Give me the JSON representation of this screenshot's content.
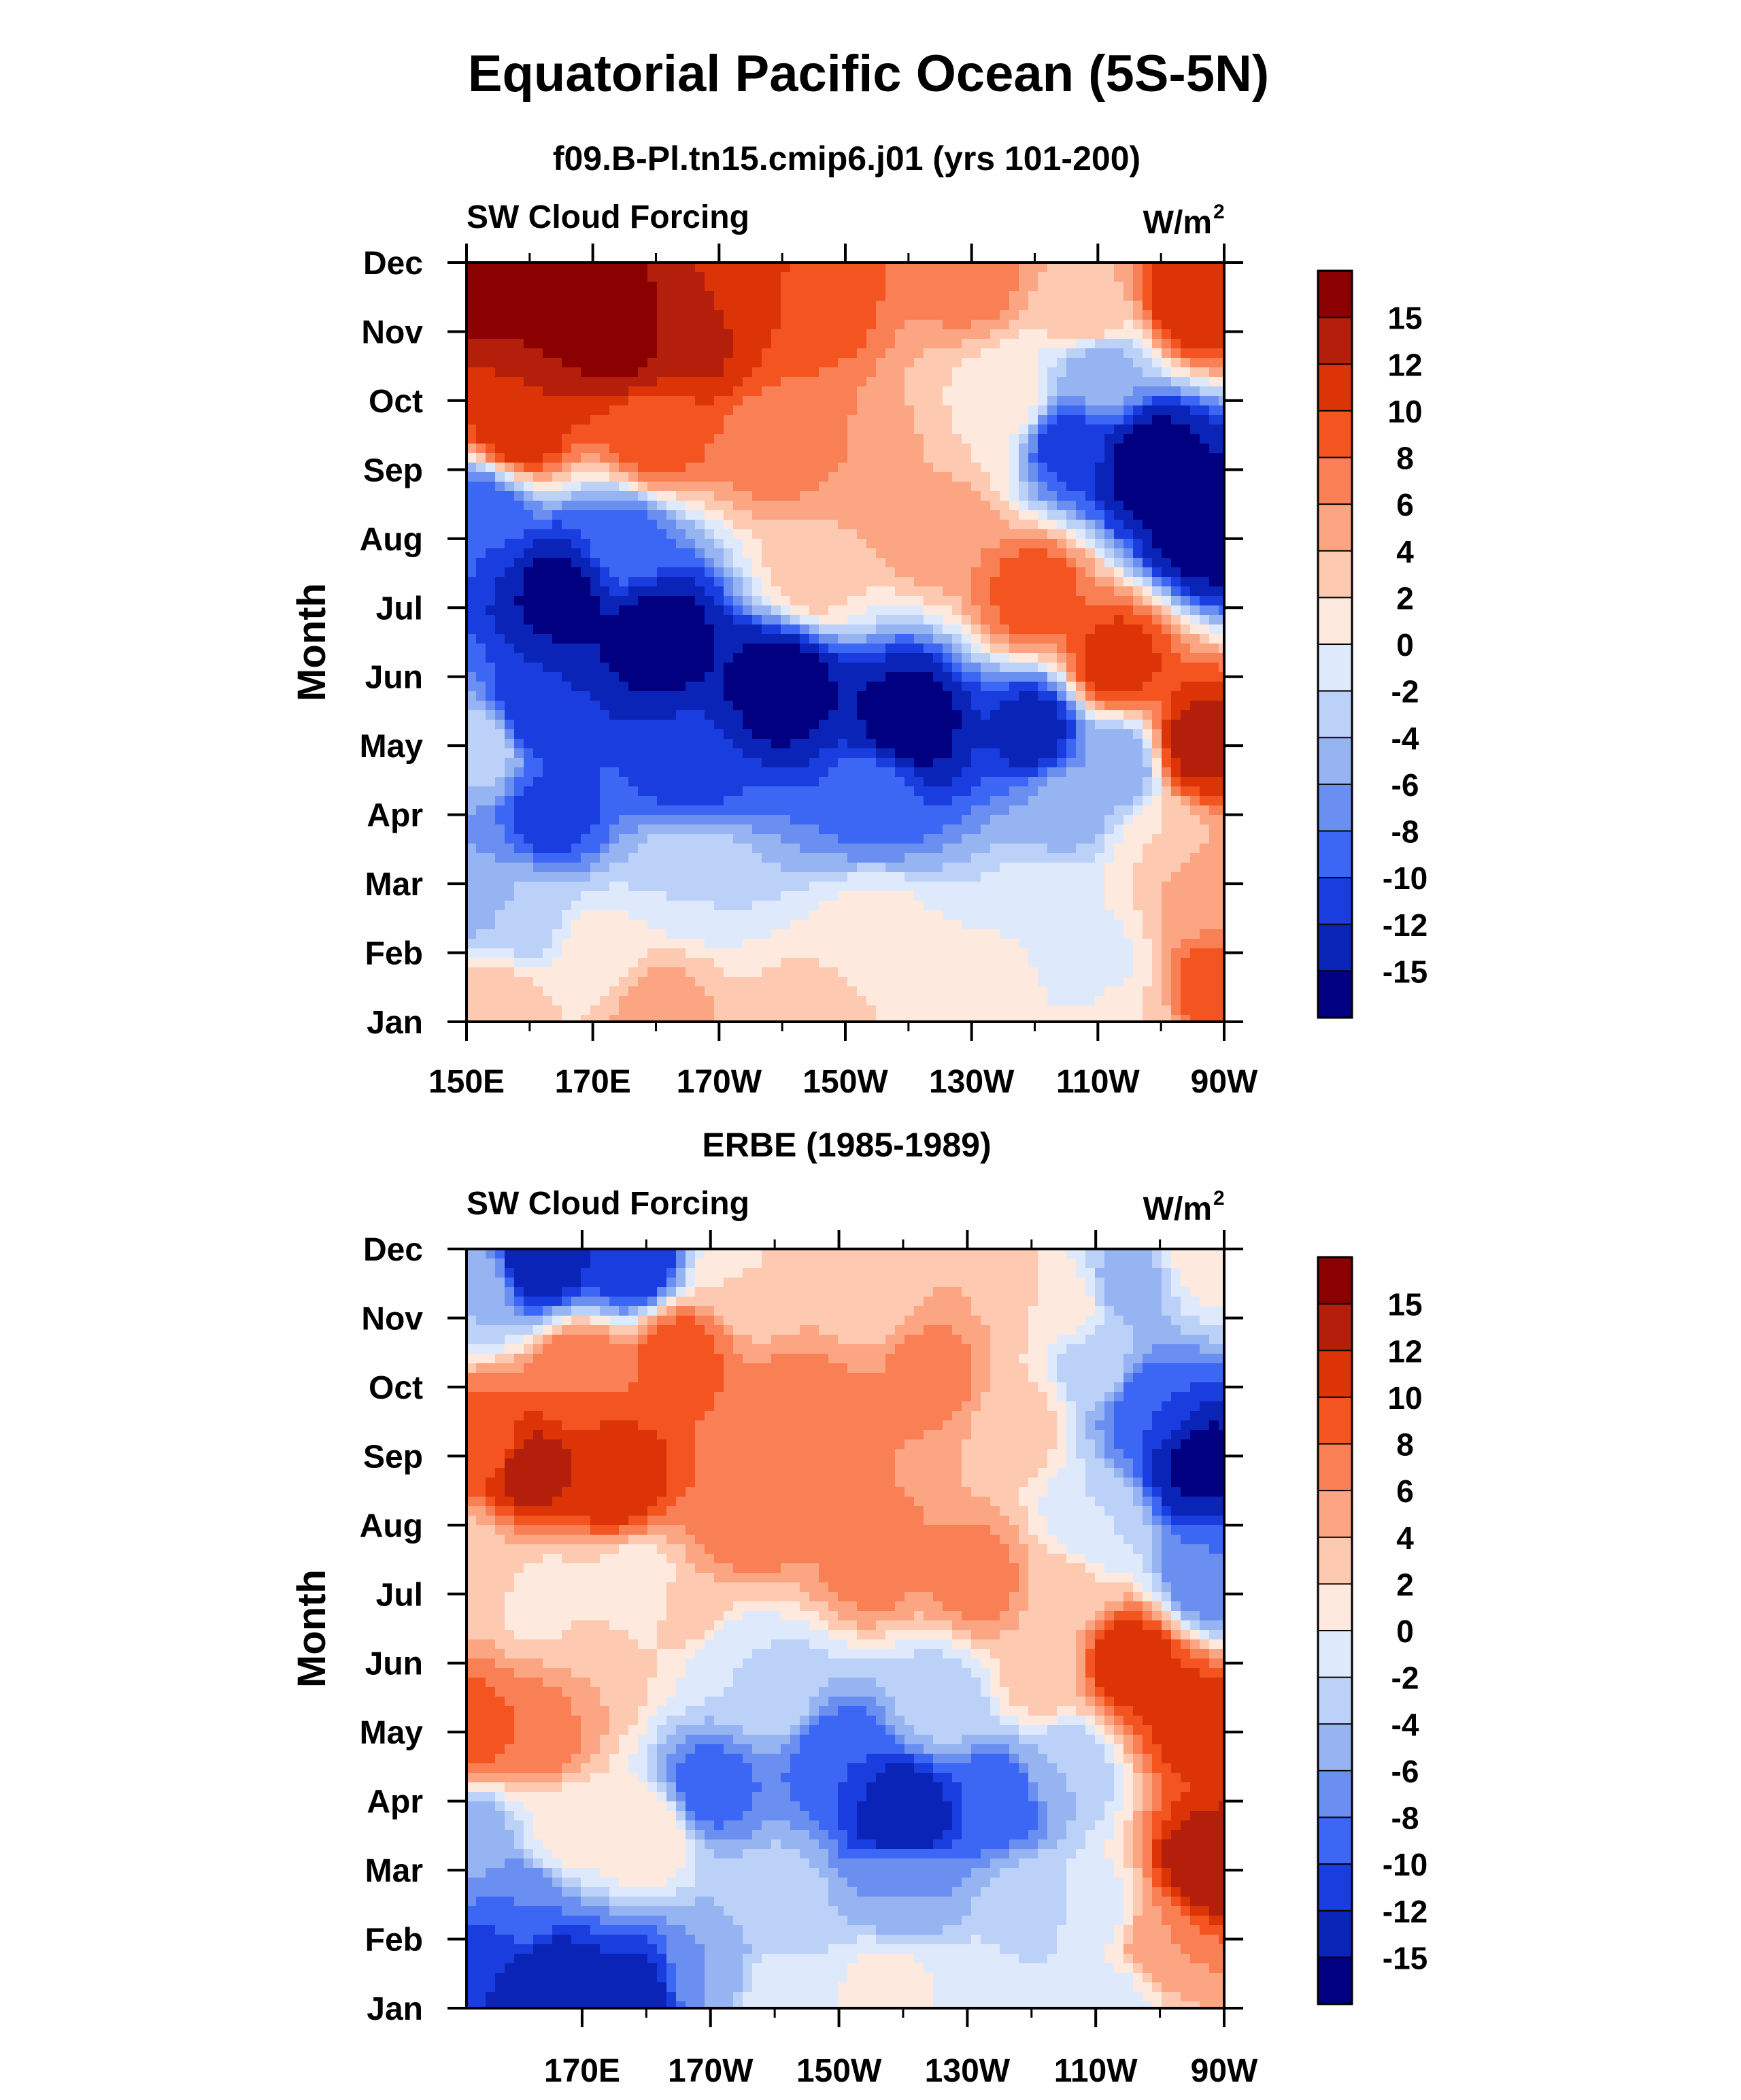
{
  "page": {
    "main_title": "Equatorial Pacific Ocean (5S-5N)"
  },
  "colorbar": {
    "labels": [
      "15",
      "12",
      "10",
      "8",
      "6",
      "4",
      "2",
      "0",
      "-2",
      "-4",
      "-6",
      "-8",
      "-10",
      "-12",
      "-15"
    ],
    "colors": [
      "#8b0000",
      "#b31f0a",
      "#dc3407",
      "#f4541f",
      "#f97f54",
      "#fba583",
      "#fdc9b0",
      "#fde9dd",
      "#deeafb",
      "#bcd1f7",
      "#96b4f2",
      "#6a8ff0",
      "#3c67f4",
      "#1a3de0",
      "#0a24b8",
      "#000080"
    ]
  },
  "chart_data": [
    {
      "type": "heatmap",
      "plot_type": "filled contour (Hovmoller)",
      "title": "f09.B-Pl.tn15.cmip6.j01 (yrs 101-200)",
      "left_label": "SW Cloud Forcing",
      "units_label": "W/m",
      "units_sup": "2",
      "ylabel": "Month",
      "y_categories": [
        "Jan",
        "Feb",
        "Mar",
        "Apr",
        "May",
        "Jun",
        "Jul",
        "Aug",
        "Sep",
        "Oct",
        "Nov",
        "Dec"
      ],
      "x_tick_labels": [
        "150E",
        "170E",
        "170W",
        "150W",
        "130W",
        "110W",
        "90W"
      ],
      "x_tick_lon": [
        150,
        170,
        190,
        210,
        230,
        250,
        270
      ],
      "xlim": [
        150,
        270
      ],
      "ylim": [
        1,
        12
      ],
      "keypoints": [
        {
          "lon": 150,
          "month": 12,
          "v": 17
        },
        {
          "lon": 165,
          "month": 11.5,
          "v": 17
        },
        {
          "lon": 175,
          "month": 11,
          "v": 17
        },
        {
          "lon": 185,
          "month": 11,
          "v": 13
        },
        {
          "lon": 195,
          "month": 11.7,
          "v": 11
        },
        {
          "lon": 205,
          "month": 11.5,
          "v": 9
        },
        {
          "lon": 230,
          "month": 11.8,
          "v": 7
        },
        {
          "lon": 248,
          "month": 11.3,
          "v": 4
        },
        {
          "lon": 265,
          "month": 11.5,
          "v": 12
        },
        {
          "lon": 158,
          "month": 9.7,
          "v": 12
        },
        {
          "lon": 180,
          "month": 9.5,
          "v": 9
        },
        {
          "lon": 200,
          "month": 9.3,
          "v": 7
        },
        {
          "lon": 215,
          "month": 9,
          "v": 6
        },
        {
          "lon": 230,
          "month": 9.5,
          "v": 2
        },
        {
          "lon": 236,
          "month": 10,
          "v": 1
        },
        {
          "lon": 245,
          "month": 9.4,
          "v": -11
        },
        {
          "lon": 258,
          "month": 9.1,
          "v": -17
        },
        {
          "lon": 267,
          "month": 8.2,
          "v": -17
        },
        {
          "lon": 250,
          "month": 10.4,
          "v": -5
        },
        {
          "lon": 225,
          "month": 8.3,
          "v": 6
        },
        {
          "lon": 240,
          "month": 7.2,
          "v": 9
        },
        {
          "lon": 253,
          "month": 6.2,
          "v": 11
        },
        {
          "lon": 266,
          "month": 5,
          "v": 13
        },
        {
          "lon": 205,
          "month": 7.5,
          "v": 3
        },
        {
          "lon": 152,
          "month": 8.3,
          "v": -10
        },
        {
          "lon": 165,
          "month": 7.2,
          "v": -16
        },
        {
          "lon": 180,
          "month": 6.6,
          "v": -17
        },
        {
          "lon": 200,
          "month": 5.9,
          "v": -17
        },
        {
          "lon": 220,
          "month": 5.3,
          "v": -17
        },
        {
          "lon": 240,
          "month": 5.2,
          "v": -13
        },
        {
          "lon": 175,
          "month": 7.9,
          "v": -9
        },
        {
          "lon": 160,
          "month": 5.5,
          "v": -12
        },
        {
          "lon": 153,
          "month": 5,
          "v": -3
        },
        {
          "lon": 163,
          "month": 4,
          "v": -11
        },
        {
          "lon": 185,
          "month": 4.6,
          "v": -11
        },
        {
          "lon": 215,
          "month": 4.3,
          "v": -9
        },
        {
          "lon": 245,
          "month": 4.1,
          "v": -5
        },
        {
          "lon": 253,
          "month": 4.7,
          "v": -6
        },
        {
          "lon": 260,
          "month": 3.5,
          "v": 2
        },
        {
          "lon": 265,
          "month": 3,
          "v": 5
        },
        {
          "lon": 268,
          "month": 1.5,
          "v": 9
        },
        {
          "lon": 152,
          "month": 3,
          "v": -6
        },
        {
          "lon": 160,
          "month": 2.5,
          "v": -3
        },
        {
          "lon": 185,
          "month": 3.2,
          "v": -2
        },
        {
          "lon": 215,
          "month": 2.2,
          "v": 1
        },
        {
          "lon": 243,
          "month": 2.6,
          "v": 0
        },
        {
          "lon": 250,
          "month": 1.8,
          "v": -1
        },
        {
          "lon": 170,
          "month": 2,
          "v": 1
        },
        {
          "lon": 155,
          "month": 1.2,
          "v": 4
        },
        {
          "lon": 180,
          "month": 1.1,
          "v": 5
        },
        {
          "lon": 205,
          "month": 1,
          "v": 3
        },
        {
          "lon": 230,
          "month": 1,
          "v": 2
        },
        {
          "lon": 255,
          "month": 1.1,
          "v": 2
        }
      ]
    },
    {
      "type": "heatmap",
      "plot_type": "filled contour (Hovmoller)",
      "title": "ERBE (1985-1989)",
      "left_label": "SW Cloud Forcing",
      "units_label": "W/m",
      "units_sup": "2",
      "ylabel": "Month",
      "y_categories": [
        "Jan",
        "Feb",
        "Mar",
        "Apr",
        "May",
        "Jun",
        "Jul",
        "Aug",
        "Sep",
        "Oct",
        "Nov",
        "Dec"
      ],
      "x_tick_labels": [
        "170E",
        "170W",
        "150W",
        "130W",
        "110W",
        "90W"
      ],
      "x_tick_lon": [
        170,
        190,
        210,
        230,
        250,
        270
      ],
      "xlim": [
        152,
        270
      ],
      "ylim": [
        1,
        12
      ],
      "keypoints": [
        {
          "lon": 163,
          "month": 11.9,
          "v": -15
        },
        {
          "lon": 178,
          "month": 11.8,
          "v": -12
        },
        {
          "lon": 153,
          "month": 11.5,
          "v": -4
        },
        {
          "lon": 195,
          "month": 11.6,
          "v": 2
        },
        {
          "lon": 215,
          "month": 11.4,
          "v": 3
        },
        {
          "lon": 235,
          "month": 11.3,
          "v": 4
        },
        {
          "lon": 245,
          "month": 11.2,
          "v": 1
        },
        {
          "lon": 255,
          "month": 11.5,
          "v": -5
        },
        {
          "lon": 267,
          "month": 11.9,
          "v": 1
        },
        {
          "lon": 170,
          "month": 10.2,
          "v": 8
        },
        {
          "lon": 185,
          "month": 10.5,
          "v": 9
        },
        {
          "lon": 205,
          "month": 9.5,
          "v": 8
        },
        {
          "lon": 225,
          "month": 10.2,
          "v": 7
        },
        {
          "lon": 238,
          "month": 9.5,
          "v": 3
        },
        {
          "lon": 250,
          "month": 10.3,
          "v": -3
        },
        {
          "lon": 258,
          "month": 9.7,
          "v": -10
        },
        {
          "lon": 266,
          "month": 8.9,
          "v": -16
        },
        {
          "lon": 268,
          "month": 7.3,
          "v": -8
        },
        {
          "lon": 162,
          "month": 8.8,
          "v": 13
        },
        {
          "lon": 175,
          "month": 8.7,
          "v": 12
        },
        {
          "lon": 155,
          "month": 9.2,
          "v": 9
        },
        {
          "lon": 153,
          "month": 7.5,
          "v": 3
        },
        {
          "lon": 165,
          "month": 6.9,
          "v": 1
        },
        {
          "lon": 178,
          "month": 7,
          "v": 0
        },
        {
          "lon": 195,
          "month": 8,
          "v": 8
        },
        {
          "lon": 215,
          "month": 7.5,
          "v": 7
        },
        {
          "lon": 232,
          "month": 7.2,
          "v": 7
        },
        {
          "lon": 245,
          "month": 7,
          "v": 3
        },
        {
          "lon": 250,
          "month": 8,
          "v": -2
        },
        {
          "lon": 255,
          "month": 6,
          "v": 12
        },
        {
          "lon": 265,
          "month": 5.2,
          "v": 11
        },
        {
          "lon": 267,
          "month": 3,
          "v": 14
        },
        {
          "lon": 260,
          "month": 2,
          "v": 6
        },
        {
          "lon": 153,
          "month": 5,
          "v": 9
        },
        {
          "lon": 163,
          "month": 5,
          "v": 8
        },
        {
          "lon": 172,
          "month": 6,
          "v": 4
        },
        {
          "lon": 188,
          "month": 6.7,
          "v": 4
        },
        {
          "lon": 192,
          "month": 6.2,
          "v": -2
        },
        {
          "lon": 190,
          "month": 4.2,
          "v": -9
        },
        {
          "lon": 210,
          "month": 4.6,
          "v": -10
        },
        {
          "lon": 220,
          "month": 3.8,
          "v": -15
        },
        {
          "lon": 235,
          "month": 4,
          "v": -10
        },
        {
          "lon": 245,
          "month": 4.5,
          "v": -4
        },
        {
          "lon": 242,
          "month": 5.8,
          "v": 3
        },
        {
          "lon": 226,
          "month": 5.5,
          "v": -3
        },
        {
          "lon": 200,
          "month": 5.6,
          "v": -3
        },
        {
          "lon": 153,
          "month": 3.5,
          "v": -5
        },
        {
          "lon": 168,
          "month": 3.6,
          "v": 1
        },
        {
          "lon": 180,
          "month": 3.5,
          "v": 2
        },
        {
          "lon": 200,
          "month": 2.6,
          "v": -3
        },
        {
          "lon": 220,
          "month": 2.7,
          "v": -6
        },
        {
          "lon": 240,
          "month": 2.5,
          "v": -3
        },
        {
          "lon": 250,
          "month": 2.4,
          "v": -1
        },
        {
          "lon": 155,
          "month": 1.6,
          "v": -12
        },
        {
          "lon": 165,
          "month": 1.4,
          "v": -14
        },
        {
          "lon": 178,
          "month": 1.2,
          "v": -13
        },
        {
          "lon": 190,
          "month": 1.5,
          "v": -6
        },
        {
          "lon": 200,
          "month": 1.2,
          "v": -1
        },
        {
          "lon": 218,
          "month": 1.3,
          "v": 1
        },
        {
          "lon": 232,
          "month": 1.2,
          "v": -1
        },
        {
          "lon": 252,
          "month": 1.1,
          "v": -1
        },
        {
          "lon": 160,
          "month": 2.5,
          "v": -8
        }
      ]
    }
  ]
}
